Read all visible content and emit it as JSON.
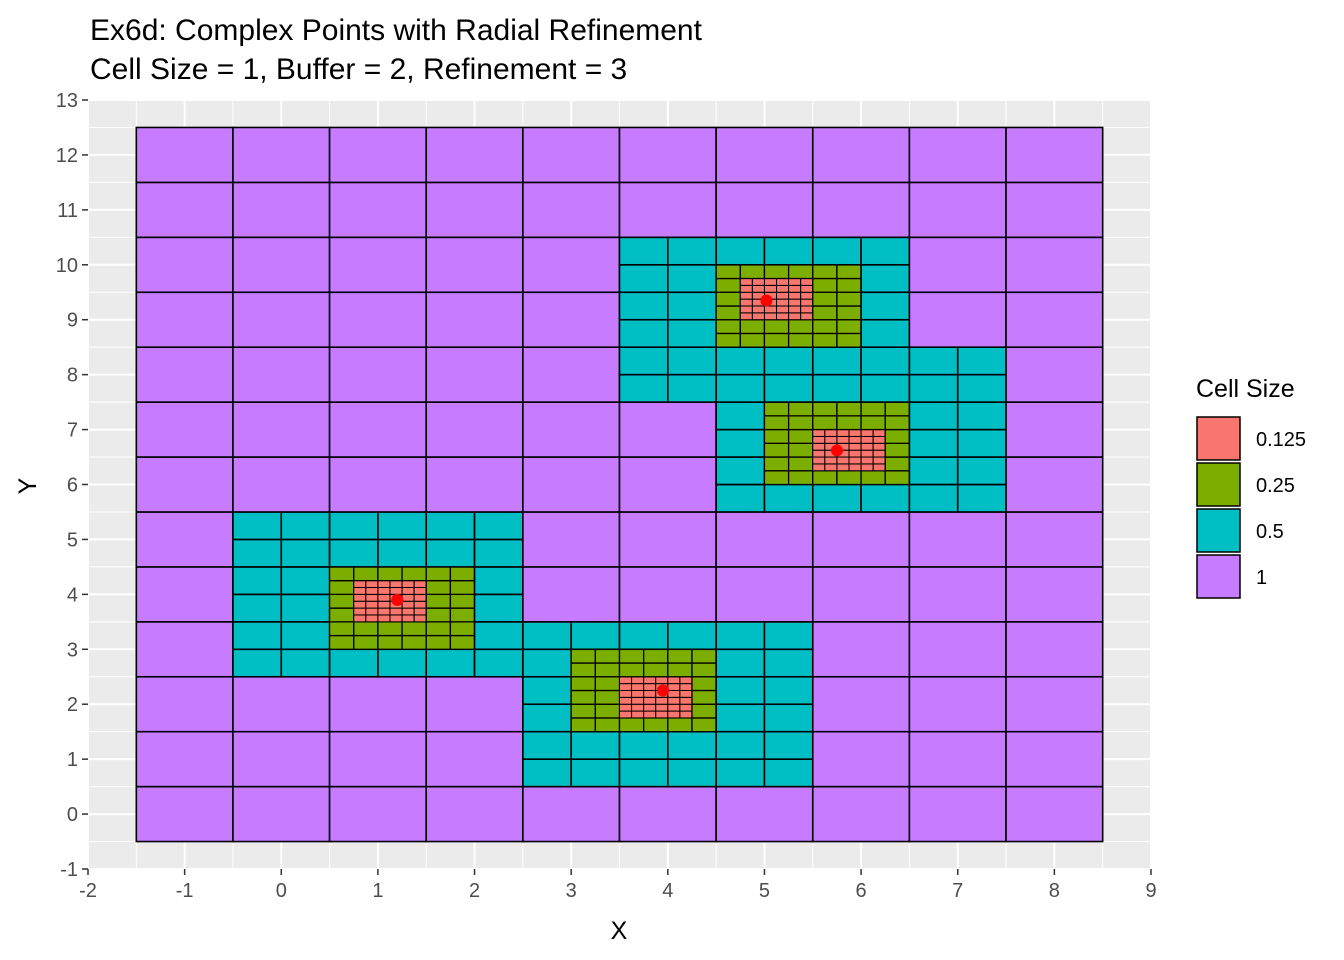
{
  "chart_data": {
    "type": "heatmap",
    "title": "Ex6d: Complex Points with Radial Refinement",
    "subtitle": "Cell Size = 1, Buffer = 2, Refinement = 3",
    "xlabel": "X",
    "ylabel": "Y",
    "xlim": [
      -2,
      9
    ],
    "ylim": [
      -1,
      13
    ],
    "x_ticks": [
      "-2",
      "-1",
      "0",
      "1",
      "2",
      "3",
      "4",
      "5",
      "6",
      "7",
      "8",
      "9"
    ],
    "y_ticks": [
      "-1",
      "0",
      "1",
      "2",
      "3",
      "4",
      "5",
      "6",
      "7",
      "8",
      "9",
      "10",
      "11",
      "12",
      "13"
    ],
    "grid": true,
    "legend": {
      "title": "Cell Size",
      "position": "right",
      "entries": [
        {
          "label": "0.125",
          "color": "#F8766D"
        },
        {
          "label": "0.25",
          "color": "#7CAE00"
        },
        {
          "label": "0.5",
          "color": "#00BFC4"
        },
        {
          "label": "1",
          "color": "#C77CFF"
        }
      ]
    },
    "domain": {
      "x": [
        -1.5,
        8.5
      ],
      "y": [
        -0.5,
        12.5
      ]
    },
    "points": [
      {
        "x": 1.2,
        "y": 3.9
      },
      {
        "x": 3.95,
        "y": 2.25
      },
      {
        "x": 5.02,
        "y": 9.35
      },
      {
        "x": 5.75,
        "y": 6.62
      }
    ],
    "point_color": "#FF0000",
    "refined_regions": [
      {
        "size": 0.5,
        "x": [
          -0.5,
          2.5
        ],
        "y": [
          2.5,
          5.5
        ]
      },
      {
        "size": 0.25,
        "x": [
          0.5,
          2.0
        ],
        "y": [
          3.0,
          4.5
        ]
      },
      {
        "size": 0.125,
        "x": [
          0.75,
          1.5
        ],
        "y": [
          3.5,
          4.25
        ]
      },
      {
        "size": 0.5,
        "x": [
          2.5,
          5.5
        ],
        "y": [
          0.5,
          3.5
        ]
      },
      {
        "size": 0.25,
        "x": [
          3.0,
          4.5
        ],
        "y": [
          1.5,
          3.0
        ]
      },
      {
        "size": 0.125,
        "x": [
          3.5,
          4.25
        ],
        "y": [
          1.75,
          2.5
        ]
      },
      {
        "size": 0.5,
        "x": [
          3.5,
          6.5
        ],
        "y": [
          7.5,
          10.5
        ]
      },
      {
        "size": 0.25,
        "x": [
          4.5,
          6.0
        ],
        "y": [
          8.5,
          10.0
        ]
      },
      {
        "size": 0.125,
        "x": [
          4.75,
          5.5
        ],
        "y": [
          9.0,
          9.75
        ]
      },
      {
        "size": 0.5,
        "x": [
          4.5,
          7.5
        ],
        "y": [
          5.5,
          8.5
        ]
      },
      {
        "size": 0.25,
        "x": [
          5.0,
          6.5
        ],
        "y": [
          6.0,
          7.5
        ]
      },
      {
        "size": 0.125,
        "x": [
          5.5,
          6.25
        ],
        "y": [
          6.25,
          7.0
        ]
      }
    ]
  }
}
